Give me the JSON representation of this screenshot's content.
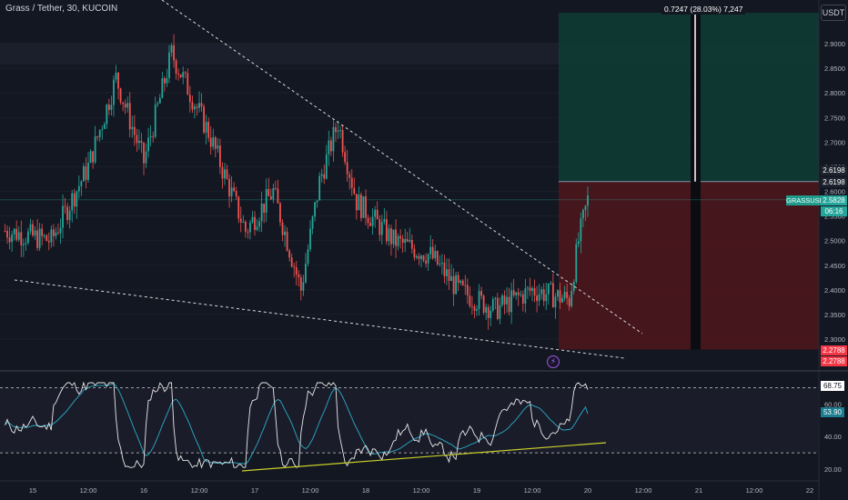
{
  "header": {
    "symbol_title": "Grass / Tether, 30, KUCOIN",
    "currency": "USDT"
  },
  "position_tool": {
    "label": "0.7247 (28.03%) 7,247",
    "entry": 2.6198,
    "target_top": 2.93,
    "stop": 2.2788,
    "profit_color": "#0f3b34",
    "loss_color": "#4b161c"
  },
  "price_tags": {
    "target1": "2.6198",
    "target2": "2.6198",
    "symbol": "GRASSUSDT",
    "last_price": "2.5828",
    "countdown": "06:16",
    "stop1": "2.2788",
    "stop2": "2.2788"
  },
  "indicator_tags": {
    "rsi": "68.75",
    "ma": "53.90"
  },
  "colors": {
    "up": "#26a69a",
    "down": "#ef5350",
    "rsi": "#e8e8e8",
    "rsi_ma": "#2a9fb8",
    "trendline": "#c9ce2a",
    "background": "#131722"
  },
  "icons": {
    "lightning": "lightning-icon"
  },
  "chart_data": [
    {
      "type": "candlestick",
      "title": "Grass / Tether, 30, KUCOIN",
      "y_unit": "USDT",
      "ylim": [
        2.28,
        2.94
      ],
      "y_ticks": [
        "2.9000",
        "2.8500",
        "2.8000",
        "2.7500",
        "2.7000",
        "2.6500",
        "2.6000",
        "2.5500",
        "2.5000",
        "2.4500",
        "2.4000",
        "2.3500",
        "2.3000"
      ],
      "x_ticks": [
        "15",
        "12:00",
        "16",
        "12:00",
        "17",
        "12:00",
        "18",
        "12:00",
        "19",
        "12:00",
        "20",
        "12:00",
        "21",
        "12:00",
        "22"
      ],
      "last_price": 2.5828,
      "price_path_keypoints": [
        {
          "t": "14 18:00",
          "price": 2.52
        },
        {
          "t": "15 04:00",
          "price": 2.5
        },
        {
          "t": "15 12:00",
          "price": 2.65
        },
        {
          "t": "15 18:00",
          "price": 2.83
        },
        {
          "t": "16 00:00",
          "price": 2.66
        },
        {
          "t": "16 06:00",
          "price": 2.88
        },
        {
          "t": "16 14:00",
          "price": 2.72
        },
        {
          "t": "16 22:00",
          "price": 2.52
        },
        {
          "t": "17 04:00",
          "price": 2.6
        },
        {
          "t": "17 10:00",
          "price": 2.4
        },
        {
          "t": "17 14:00",
          "price": 2.62
        },
        {
          "t": "17 18:00",
          "price": 2.74
        },
        {
          "t": "17 22:00",
          "price": 2.58
        },
        {
          "t": "18 06:00",
          "price": 2.5
        },
        {
          "t": "18 14:00",
          "price": 2.47
        },
        {
          "t": "18 20:00",
          "price": 2.4
        },
        {
          "t": "19 04:00",
          "price": 2.36
        },
        {
          "t": "19 12:00",
          "price": 2.4
        },
        {
          "t": "19 20:00",
          "price": 2.38
        },
        {
          "t": "19 22:00",
          "price": 2.5
        },
        {
          "t": "20 00:00",
          "price": 2.5828
        }
      ],
      "annotations": [
        "descending resistance trendline (dashed)",
        "descending support trendline (dashed)"
      ]
    },
    {
      "type": "line",
      "name": "RSI",
      "ylim": [
        15,
        78
      ],
      "y_ticks": [
        "60.00",
        "40.00",
        "20.00"
      ],
      "levels": [
        70,
        30
      ],
      "last_value": 68.75,
      "ma_last_value": 53.9
    }
  ]
}
